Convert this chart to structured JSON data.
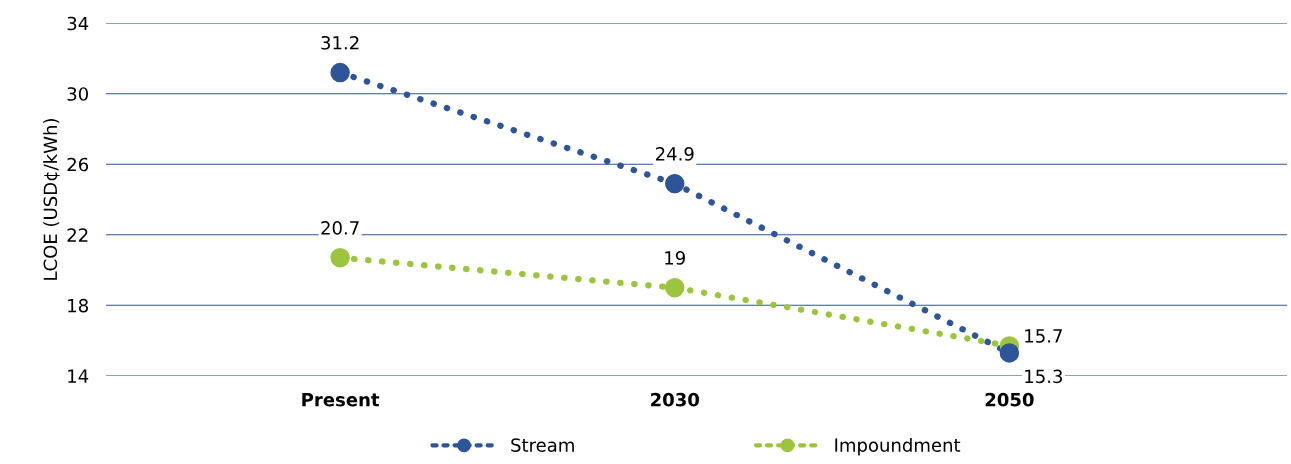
{
  "chart_data": {
    "type": "line",
    "ylabel": "LCOE (USD¢/kWh)",
    "categories": [
      "Present",
      "2030",
      "2050"
    ],
    "series": [
      {
        "name": "Stream",
        "color": "#2e5597",
        "values": [
          31.2,
          24.9,
          15.3
        ]
      },
      {
        "name": "Impoundment",
        "color": "#9bc53d",
        "values": [
          20.7,
          19,
          15.7
        ]
      }
    ],
    "ylim": [
      14,
      34
    ],
    "yticks": [
      14,
      18,
      22,
      26,
      30,
      34
    ],
    "grid": "y",
    "legend": "bottom",
    "marker": "circle",
    "line_style": "dotted",
    "data_labels": true
  }
}
